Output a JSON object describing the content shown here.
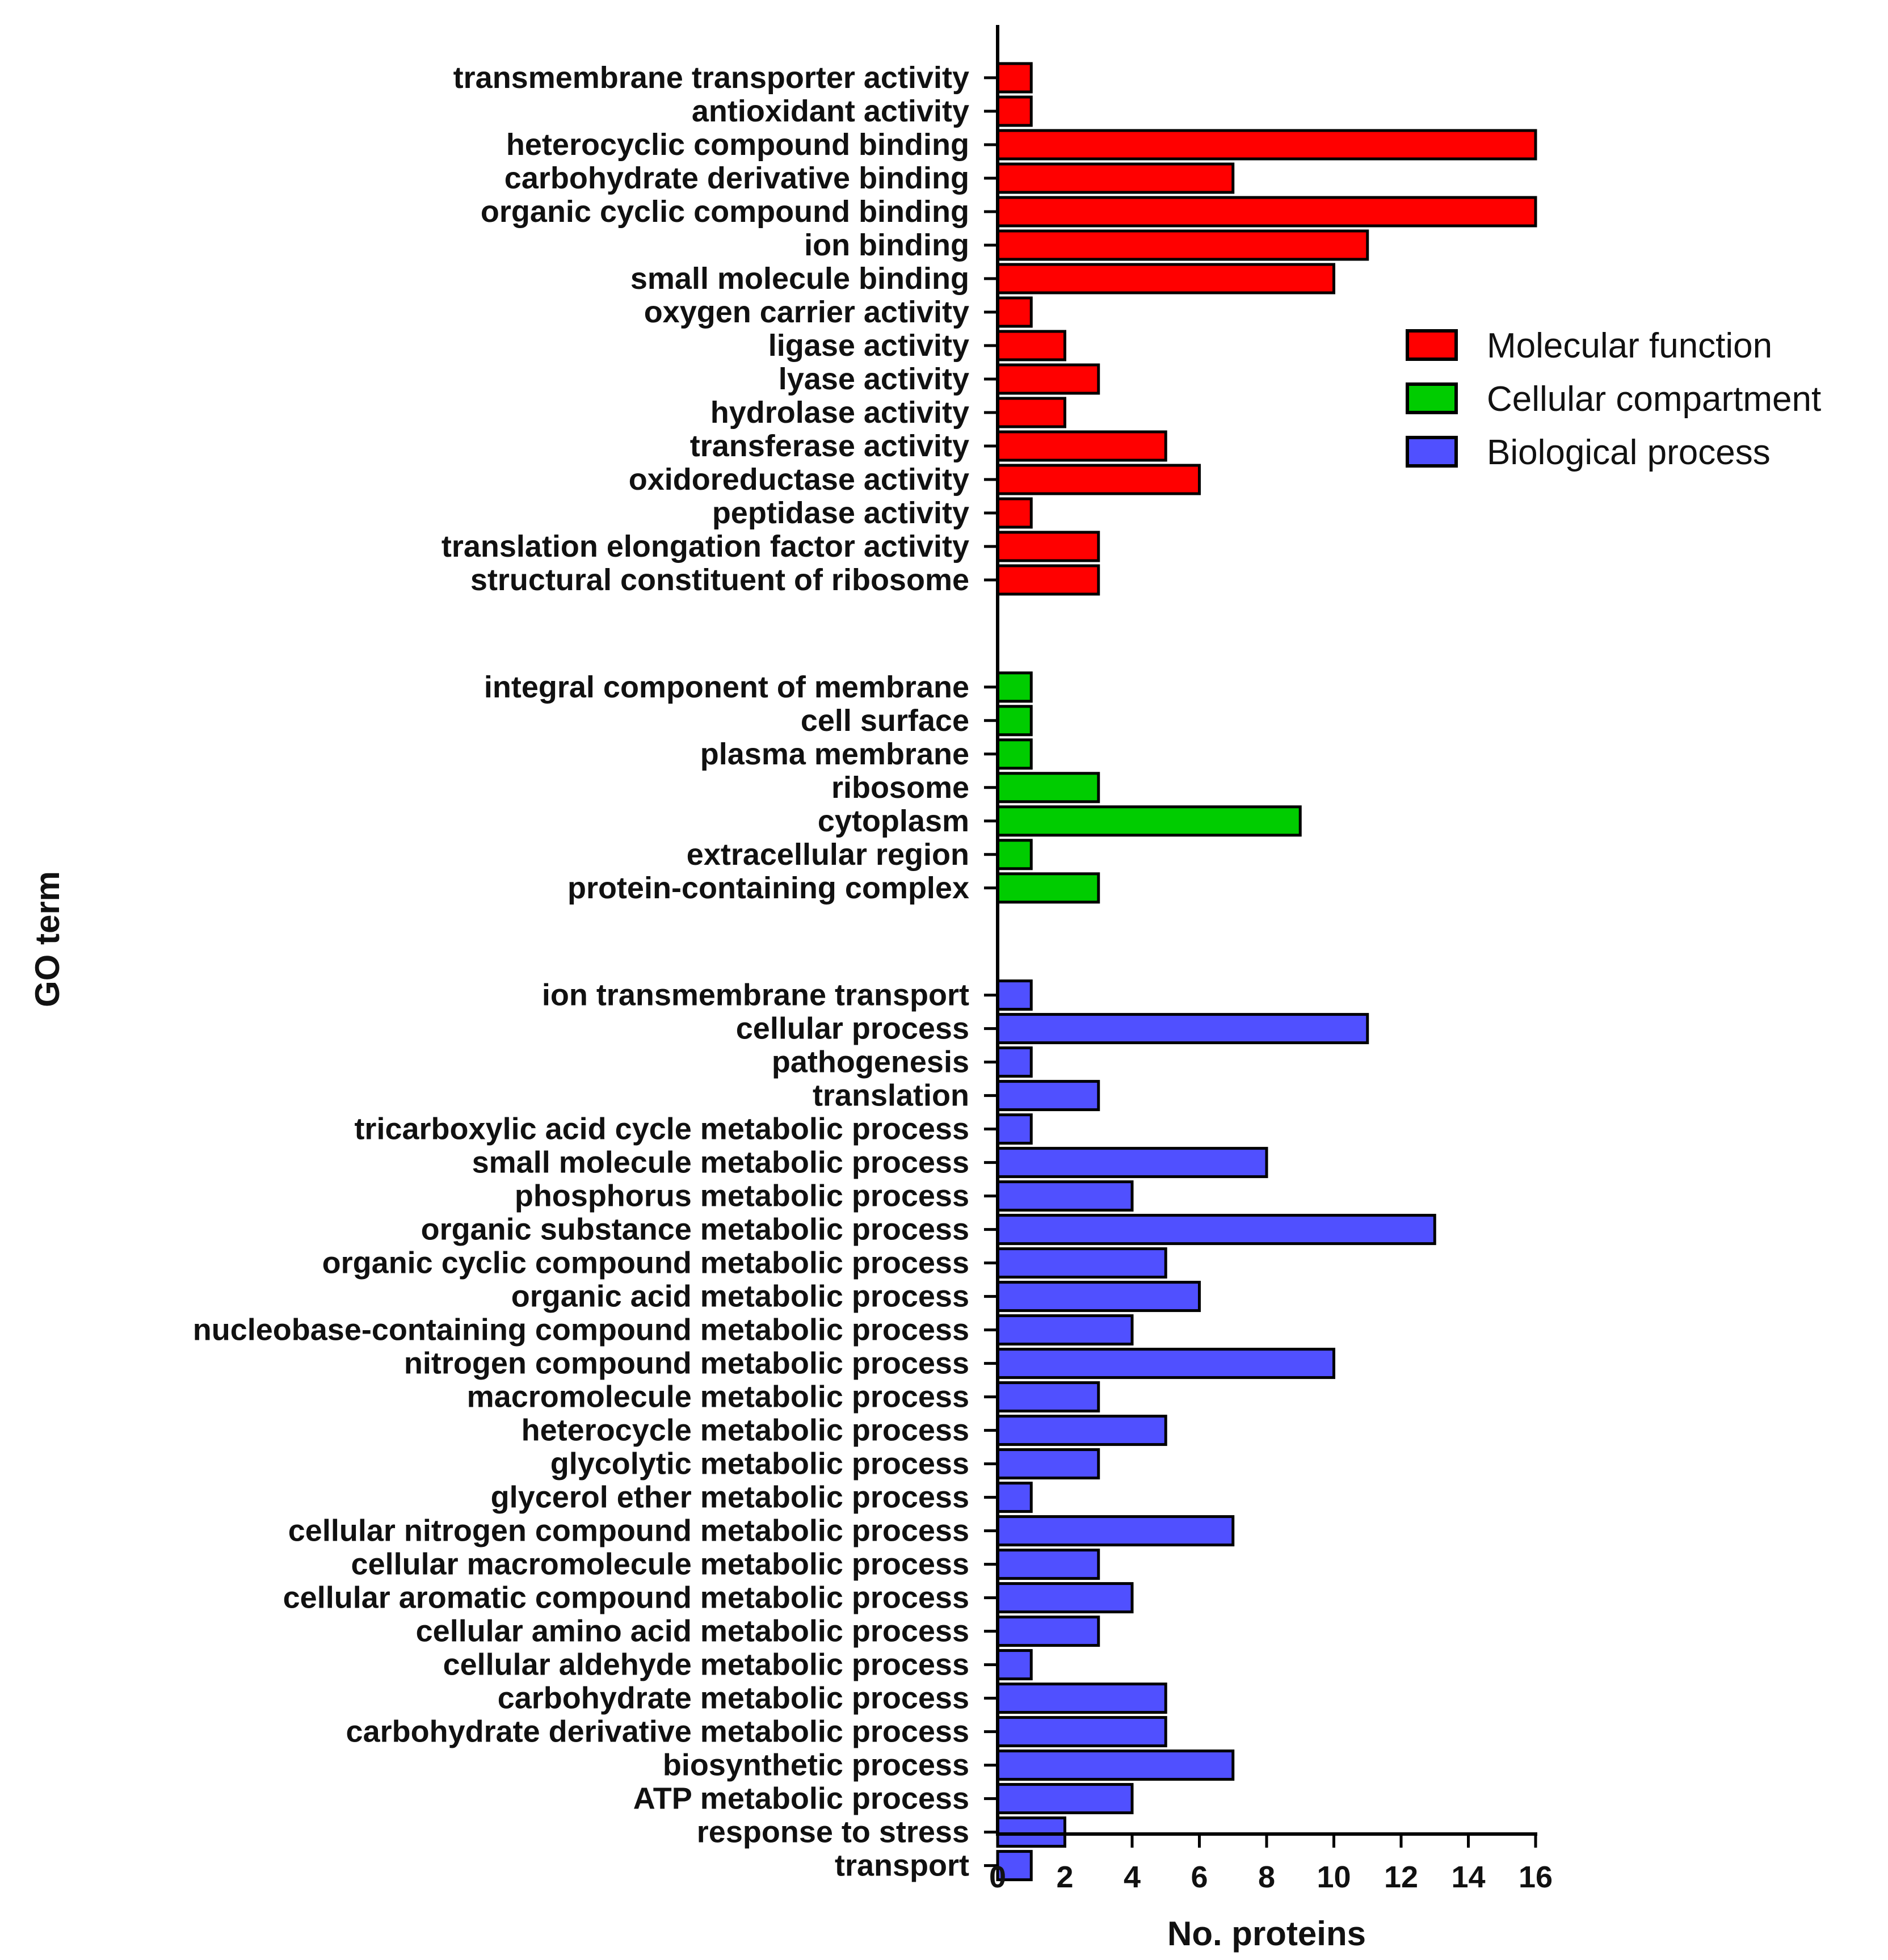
{
  "chart_data": {
    "type": "bar",
    "orientation": "horizontal",
    "xlabel": "No. proteins",
    "ylabel": "GO term",
    "xlim": [
      0,
      16
    ],
    "xticks": [
      "0",
      "2",
      "4",
      "6",
      "8",
      "10",
      "12",
      "14",
      "16"
    ],
    "grid": false,
    "legend_position": "right",
    "series": [
      {
        "name": "Molecular function",
        "color": "#ff0000",
        "categories": [
          "transmembrane transporter activity",
          "antioxidant activity",
          "heterocyclic compound binding",
          "carbohydrate derivative binding",
          "organic cyclic compound binding",
          "ion binding",
          "small molecule binding",
          "oxygen carrier activity",
          "ligase activity",
          "lyase activity",
          "hydrolase activity",
          "transferase activity",
          "oxidoreductase activity",
          "peptidase activity",
          "translation elongation factor activity",
          "structural constituent of ribosome"
        ],
        "values": [
          1,
          1,
          16,
          7,
          16,
          11,
          10,
          1,
          2,
          3,
          2,
          5,
          6,
          1,
          3,
          3
        ]
      },
      {
        "name": "Cellular compartment",
        "color": "#00cc00",
        "categories": [
          "integral component of membrane",
          "cell surface",
          "plasma membrane",
          "ribosome",
          "cytoplasm",
          "extracellular region",
          "protein-containing complex"
        ],
        "values": [
          1,
          1,
          1,
          3,
          9,
          1,
          3
        ]
      },
      {
        "name": "Biological process",
        "color": "#5050ff",
        "categories": [
          "ion transmembrane transport",
          "cellular process",
          "pathogenesis",
          "translation",
          "tricarboxylic acid cycle metabolic process",
          "small molecule metabolic process",
          "phosphorus metabolic process",
          "organic substance metabolic process",
          "organic cyclic compound metabolic process",
          "organic acid metabolic process",
          "nucleobase-containing compound metabolic process",
          "nitrogen compound metabolic process",
          "macromolecule metabolic process",
          "heterocycle metabolic process",
          "glycolytic metabolic process",
          "glycerol ether metabolic process",
          "cellular nitrogen compound metabolic process",
          "cellular macromolecule metabolic process",
          "cellular aromatic compound metabolic process",
          "cellular amino acid metabolic process",
          "cellular aldehyde metabolic process",
          "carbohydrate metabolic process",
          "carbohydrate derivative metabolic process",
          "biosynthetic process",
          "ATP metabolic process",
          "response to stress",
          "transport"
        ],
        "values": [
          1,
          11,
          1,
          3,
          1,
          8,
          4,
          13,
          5,
          6,
          4,
          10,
          3,
          5,
          3,
          1,
          7,
          3,
          4,
          3,
          1,
          5,
          5,
          7,
          4,
          2,
          1
        ]
      }
    ]
  }
}
